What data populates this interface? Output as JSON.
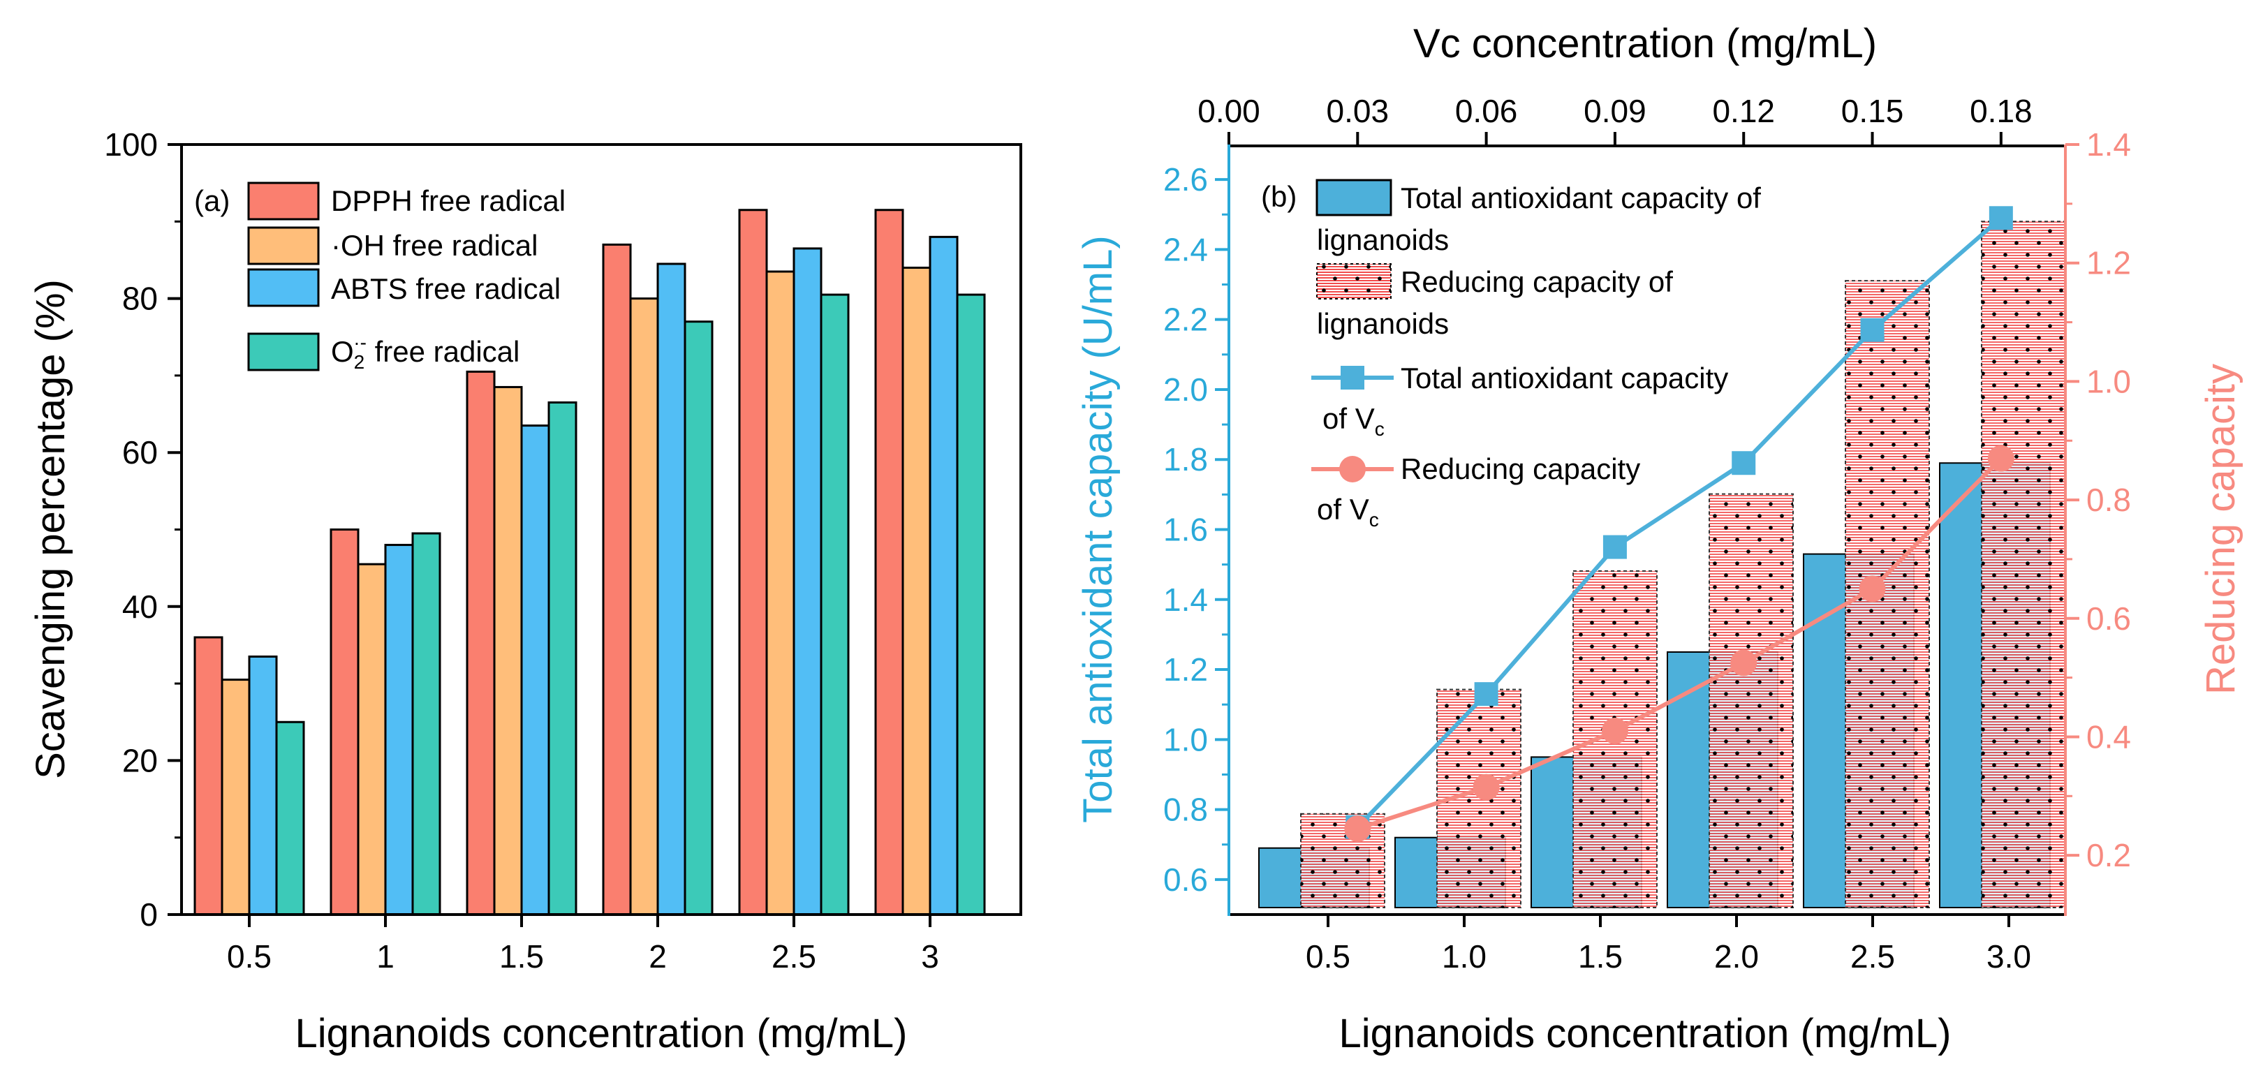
{
  "colors": {
    "dpph": "#FA7F6F",
    "oh": "#FFBE7A",
    "abts": "#52BEF5",
    "o2": "#3CCAB8",
    "tac_bar": "#4DB0DA",
    "blue_axis": "#29A9D9",
    "salmon": "#F78A80"
  },
  "chart_data": [
    {
      "panel": "a",
      "type": "bar",
      "panel_label": "(a)",
      "categories": [
        "0.5",
        "1",
        "1.5",
        "2",
        "2.5",
        "3"
      ],
      "series": [
        {
          "name": "DPPH free radical",
          "values": [
            36,
            50,
            70.5,
            87,
            91.5,
            91.5
          ]
        },
        {
          "name": "·OH free radical",
          "values": [
            30.5,
            45.5,
            68.5,
            80,
            83.5,
            84
          ]
        },
        {
          "name": "ABTS free radical",
          "values": [
            33.5,
            48,
            63.5,
            84.5,
            86.5,
            88
          ]
        },
        {
          "name": "O2·- free radical",
          "values": [
            25,
            49.5,
            66.5,
            77,
            80.5,
            80.5
          ]
        }
      ],
      "ylim": [
        0,
        100
      ],
      "yticks": [
        "0",
        "20",
        "40",
        "60",
        "80",
        "100"
      ],
      "xlabel": "Lignanoids concentration (mg/mL)",
      "ylabel": "Scavenging percentage (%)",
      "legend": {
        "dpph": "DPPH free radical",
        "oh": "·OH free radical",
        "abts": "ABTS free radical",
        "o2_base": "O",
        "o2_sub": "2",
        "o2_sup": "·-",
        "o2_rest": " free radical"
      }
    },
    {
      "panel": "b",
      "type": "bar+line",
      "panel_label": "(b)",
      "categories": [
        "0.5",
        "1.0",
        "1.5",
        "2.0",
        "2.5",
        "3.0"
      ],
      "bar_series": [
        {
          "name": "Total antioxidant capacity of lignanoids",
          "axis": "left",
          "values": [
            0.69,
            0.72,
            0.95,
            1.25,
            1.53,
            1.79
          ]
        },
        {
          "name": "Reducing capacity of lignanoids",
          "axis": "right",
          "values": [
            0.27,
            0.48,
            0.68,
            0.81,
            1.17,
            1.27
          ]
        }
      ],
      "line_series": [
        {
          "name": "Total antioxidant capacity of Vc",
          "axis": "left",
          "x": [
            0.03,
            0.06,
            0.09,
            0.12,
            0.15,
            0.18
          ],
          "values": [
            0.75,
            1.13,
            1.55,
            1.79,
            2.17,
            2.49
          ]
        },
        {
          "name": "Reducing capacity of Vc",
          "axis": "right",
          "x": [
            0.03,
            0.06,
            0.09,
            0.12,
            0.15,
            0.18
          ],
          "values": [
            0.245,
            0.315,
            0.41,
            0.525,
            0.65,
            0.87
          ]
        }
      ],
      "left_ylim": [
        0.5,
        2.7
      ],
      "left_yticks": [
        "0.6",
        "0.8",
        "1.0",
        "1.2",
        "1.4",
        "1.6",
        "1.8",
        "2.0",
        "2.2",
        "2.4",
        "2.6"
      ],
      "right_ylim": [
        0.1,
        1.4
      ],
      "right_yticks": [
        "0.2",
        "0.4",
        "0.6",
        "0.8",
        "1.0",
        "1.2",
        "1.4"
      ],
      "top_xlim": [
        0,
        0.195
      ],
      "top_xticks": [
        "0.00",
        "0.03",
        "0.06",
        "0.09",
        "0.12",
        "0.15",
        "0.18"
      ],
      "xlabel": "Lignanoids concentration (mg/mL)",
      "top_xlabel": "Vc concentration (mg/mL)",
      "ylabel_left": "Total antioxidant capacity (U/mL)",
      "ylabel_right": "Reducing capacity",
      "legend": {
        "tac_line1": "Total antioxidant capacity of",
        "tac_line2": "lignanoids",
        "red_line1": "Reducing capacity of",
        "red_line2": "lignanoids",
        "vc_tac_line1": "Total antioxidant capacity",
        "vc_tac_line2": "of V",
        "vc_red_line1": "Reducing capacity",
        "vc_red_line2": "of V",
        "sub_c": "c"
      }
    }
  ]
}
